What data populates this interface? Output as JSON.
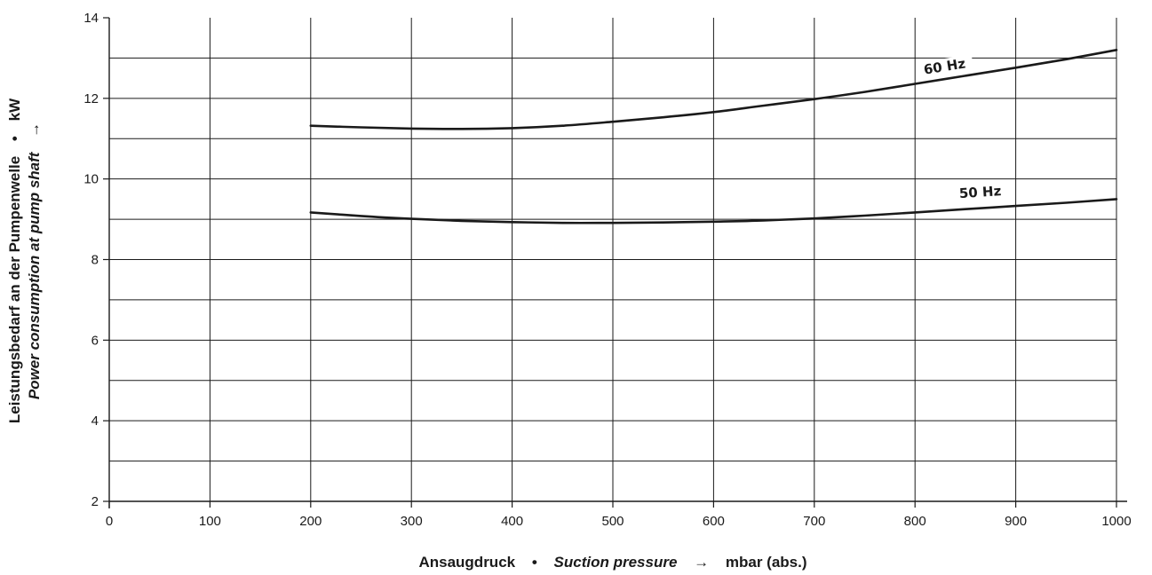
{
  "chart_data": {
    "type": "line",
    "xlabel": {
      "de": "Ansaugdruck",
      "bullet": "•",
      "en": "Suction pressure",
      "arrow": "→",
      "unit": "mbar (abs.)"
    },
    "ylabel": {
      "de": "Leistungsbedarf an der Pumpenwelle",
      "bullet": "•",
      "unit": "kW",
      "en": "Power consumption at pump shaft",
      "arrow": "→"
    },
    "xlim": [
      0,
      1000
    ],
    "ylim": [
      2,
      14
    ],
    "x_ticks": [
      0,
      100,
      200,
      300,
      400,
      500,
      600,
      700,
      800,
      900,
      1000
    ],
    "y_ticks": [
      2,
      4,
      6,
      8,
      10,
      12,
      14
    ],
    "grid": true,
    "series": [
      {
        "name": "60 Hz",
        "color": "#1a1a1a",
        "x": [
          200,
          250,
          300,
          350,
          400,
          450,
          500,
          550,
          600,
          650,
          700,
          750,
          800,
          850,
          900,
          950,
          1000
        ],
        "y": [
          11.32,
          11.28,
          11.25,
          11.24,
          11.26,
          11.32,
          11.42,
          11.53,
          11.66,
          11.82,
          11.98,
          12.16,
          12.36,
          12.56,
          12.76,
          12.97,
          13.2
        ]
      },
      {
        "name": "50 Hz",
        "color": "#1a1a1a",
        "x": [
          200,
          250,
          300,
          350,
          400,
          450,
          500,
          550,
          600,
          650,
          700,
          750,
          800,
          850,
          900,
          950,
          1000
        ],
        "y": [
          9.17,
          9.08,
          9.01,
          8.96,
          8.93,
          8.91,
          8.91,
          8.92,
          8.94,
          8.97,
          9.02,
          9.09,
          9.17,
          9.25,
          9.33,
          9.41,
          9.5
        ]
      }
    ]
  }
}
